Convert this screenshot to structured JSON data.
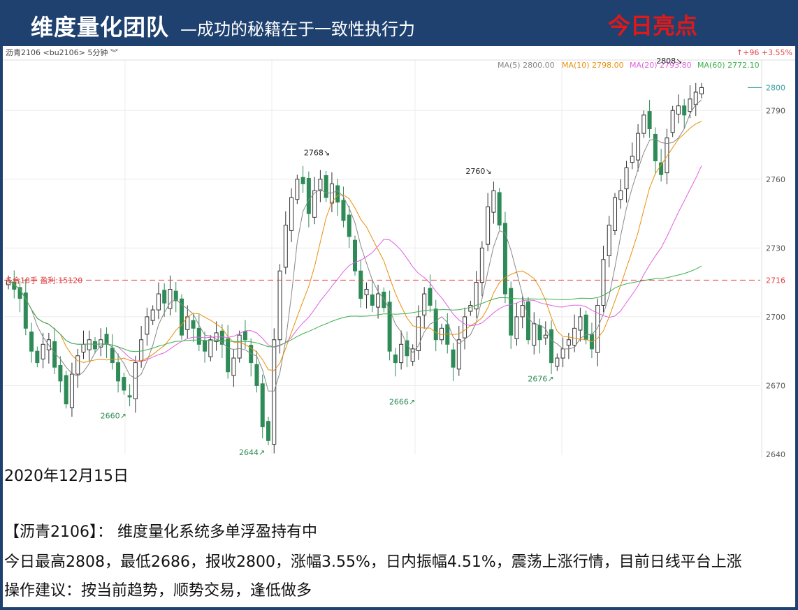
{
  "header": {
    "title_main": "维度量化团队",
    "title_sub": "—成功的秘籍在于一致性执行力",
    "highlight": "今日亮点"
  },
  "toolbar": {
    "instrument": "沥青2106 <bu2106> 5分钟 ︾",
    "change": "↑+96 +3.55%"
  },
  "ma_legend": [
    {
      "label": "MA(5) 2800.00",
      "color": "#888888"
    },
    {
      "label": "MA(10) 2798.00",
      "color": "#e8900c"
    },
    {
      "label": "MA(20) 2793.80",
      "color": "#e060e0"
    },
    {
      "label": "MA(60) 2772.10",
      "color": "#3cb04c"
    }
  ],
  "position_line": {
    "label": "多合18手 盈利:15120",
    "price": 2716,
    "color": "#e04040"
  },
  "last_price_tag": "2800",
  "colors": {
    "up": "#333333",
    "down": "#2e8b57",
    "grid": "#ececec"
  },
  "chart_data": {
    "type": "candlestick",
    "title": "沥青2106 <bu2106> 5分钟",
    "ylim": [
      2640,
      2812
    ],
    "y_ticks": [
      2640,
      2670,
      2700,
      2716,
      2730,
      2760,
      2790,
      2800
    ],
    "series": [
      {
        "name": "MA(5)",
        "last": 2800.0
      },
      {
        "name": "MA(10)",
        "last": 2798.0
      },
      {
        "name": "MA(20)",
        "last": 2793.8
      },
      {
        "name": "MA(60)",
        "last": 2772.1
      }
    ],
    "close_path": [
      2716,
      2712,
      2708,
      2695,
      2685,
      2680,
      2688,
      2690,
      2678,
      2672,
      2662,
      2675,
      2683,
      2688,
      2690,
      2686,
      2690,
      2688,
      2680,
      2672,
      2668,
      2665,
      2680,
      2690,
      2700,
      2703,
      2710,
      2706,
      2712,
      2707,
      2692,
      2700,
      2695,
      2688,
      2685,
      2690,
      2693,
      2688,
      2676,
      2682,
      2692,
      2690,
      2680,
      2670,
      2652,
      2646,
      2690,
      2720,
      2740,
      2752,
      2760,
      2758,
      2745,
      2755,
      2760,
      2752,
      2758,
      2750,
      2742,
      2735,
      2720,
      2708,
      2712,
      2705,
      2710,
      2704,
      2685,
      2680,
      2688,
      2683,
      2686,
      2700,
      2710,
      2705,
      2690,
      2695,
      2688,
      2678,
      2690,
      2700,
      2705,
      2715,
      2730,
      2748,
      2755,
      2740,
      2710,
      2692,
      2700,
      2705,
      2690,
      2697,
      2690,
      2692,
      2680,
      2682,
      2686,
      2690,
      2695,
      2700,
      2690,
      2686,
      2705,
      2725,
      2740,
      2752,
      2755,
      2765,
      2770,
      2780,
      2788,
      2782,
      2768,
      2762,
      2778,
      2790,
      2792,
      2788,
      2795,
      2798,
      2800
    ],
    "annotations": [
      {
        "label": "2720",
        "idx": 0,
        "price": 2720,
        "dir": "high"
      },
      {
        "label": "2660↗",
        "idx": 21,
        "price": 2660,
        "dir": "low"
      },
      {
        "label": "2644↗",
        "idx": 45,
        "price": 2644,
        "dir": "low"
      },
      {
        "label": "2768↘",
        "idx": 56,
        "price": 2768,
        "dir": "high"
      },
      {
        "label": "2666↗",
        "idx": 71,
        "price": 2666,
        "dir": "low"
      },
      {
        "label": "2760↘",
        "idx": 84,
        "price": 2760,
        "dir": "high"
      },
      {
        "label": "2676↗",
        "idx": 95,
        "price": 2676,
        "dir": "low"
      },
      {
        "label": "2808↘",
        "idx": 117,
        "price": 2808,
        "dir": "high"
      }
    ]
  },
  "text": {
    "date": "2020年12月15日",
    "line1": "【沥青2106】：  维度量化系统多单浮盈持有中",
    "line2": "今日最高2808，最低2686，报收2800，涨幅3.55%，日内振幅4.51%，震荡上涨行情，目前日线平台上涨",
    "line3": "操作建议：按当前趋势，顺势交易，逢低做多"
  }
}
